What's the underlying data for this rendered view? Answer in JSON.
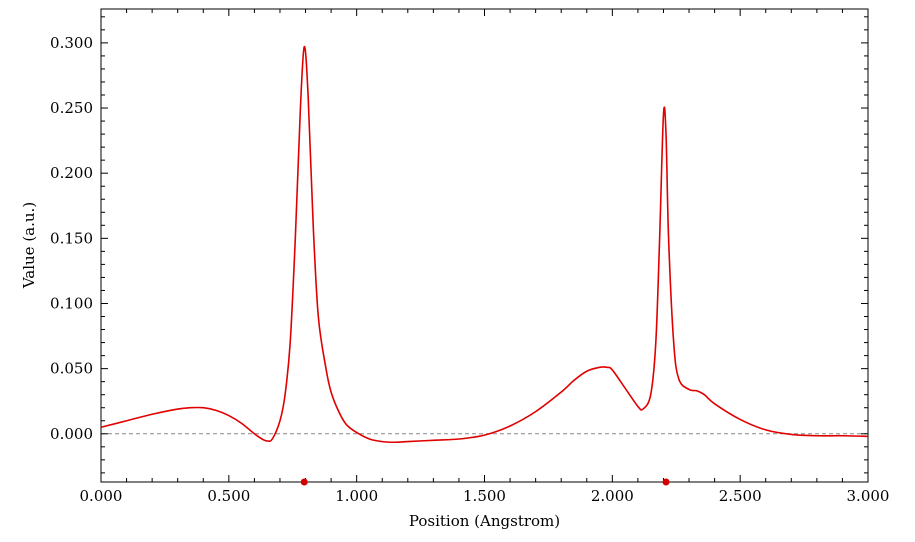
{
  "chart_data": {
    "type": "line",
    "title": "",
    "xlabel": "Position (Angstrom)",
    "ylabel": "Value (a.u.)",
    "xlim": [
      0.0,
      3.0
    ],
    "ylim": [
      -0.037,
      0.326
    ],
    "x_ticks": [
      0.0,
      0.5,
      1.0,
      1.5,
      2.0,
      2.5,
      3.0
    ],
    "x_tick_labels": [
      "0.000",
      "0.500",
      "1.000",
      "1.500",
      "2.000",
      "2.500",
      "3.000"
    ],
    "y_ticks": [
      0.0,
      0.05,
      0.1,
      0.15,
      0.2,
      0.25,
      0.3
    ],
    "y_tick_labels": [
      "0.000",
      "0.050",
      "0.100",
      "0.150",
      "0.200",
      "0.250",
      "0.300"
    ],
    "zero_line": true,
    "grid": false,
    "line_color": "#e00000",
    "marker_color": "#d40000",
    "series": [
      {
        "x": [
          0.0,
          0.1,
          0.2,
          0.3,
          0.35,
          0.4,
          0.45,
          0.5,
          0.55,
          0.6,
          0.63,
          0.65,
          0.67,
          0.7,
          0.72,
          0.74,
          0.76,
          0.78,
          0.795,
          0.81,
          0.83,
          0.85,
          0.88,
          0.9,
          0.93,
          0.96,
          1.0,
          1.05,
          1.1,
          1.15,
          1.2,
          1.3,
          1.4,
          1.5,
          1.6,
          1.7,
          1.8,
          1.85,
          1.9,
          1.95,
          1.98,
          2.0,
          2.05,
          2.1,
          2.12,
          2.15,
          2.17,
          2.185,
          2.2,
          2.21,
          2.22,
          2.24,
          2.26,
          2.3,
          2.33,
          2.36,
          2.4,
          2.5,
          2.6,
          2.7,
          2.8,
          2.9,
          3.0
        ],
        "y": [
          0.005,
          0.01,
          0.015,
          0.019,
          0.02,
          0.02,
          0.018,
          0.014,
          0.008,
          0.0,
          -0.004,
          -0.0055,
          -0.004,
          0.01,
          0.03,
          0.07,
          0.15,
          0.25,
          0.297,
          0.26,
          0.16,
          0.09,
          0.05,
          0.032,
          0.017,
          0.007,
          0.001,
          -0.004,
          -0.006,
          -0.0065,
          -0.006,
          -0.005,
          -0.004,
          -0.001,
          0.006,
          0.017,
          0.032,
          0.041,
          0.048,
          0.051,
          0.051,
          0.049,
          0.035,
          0.021,
          0.019,
          0.03,
          0.07,
          0.15,
          0.245,
          0.23,
          0.15,
          0.07,
          0.042,
          0.034,
          0.033,
          0.03,
          0.023,
          0.011,
          0.003,
          -0.0005,
          -0.0015,
          -0.0015,
          -0.002
        ]
      }
    ],
    "markers": [
      {
        "x": 0.795,
        "y": -0.037
      },
      {
        "x": 2.21,
        "y": -0.037
      }
    ]
  }
}
